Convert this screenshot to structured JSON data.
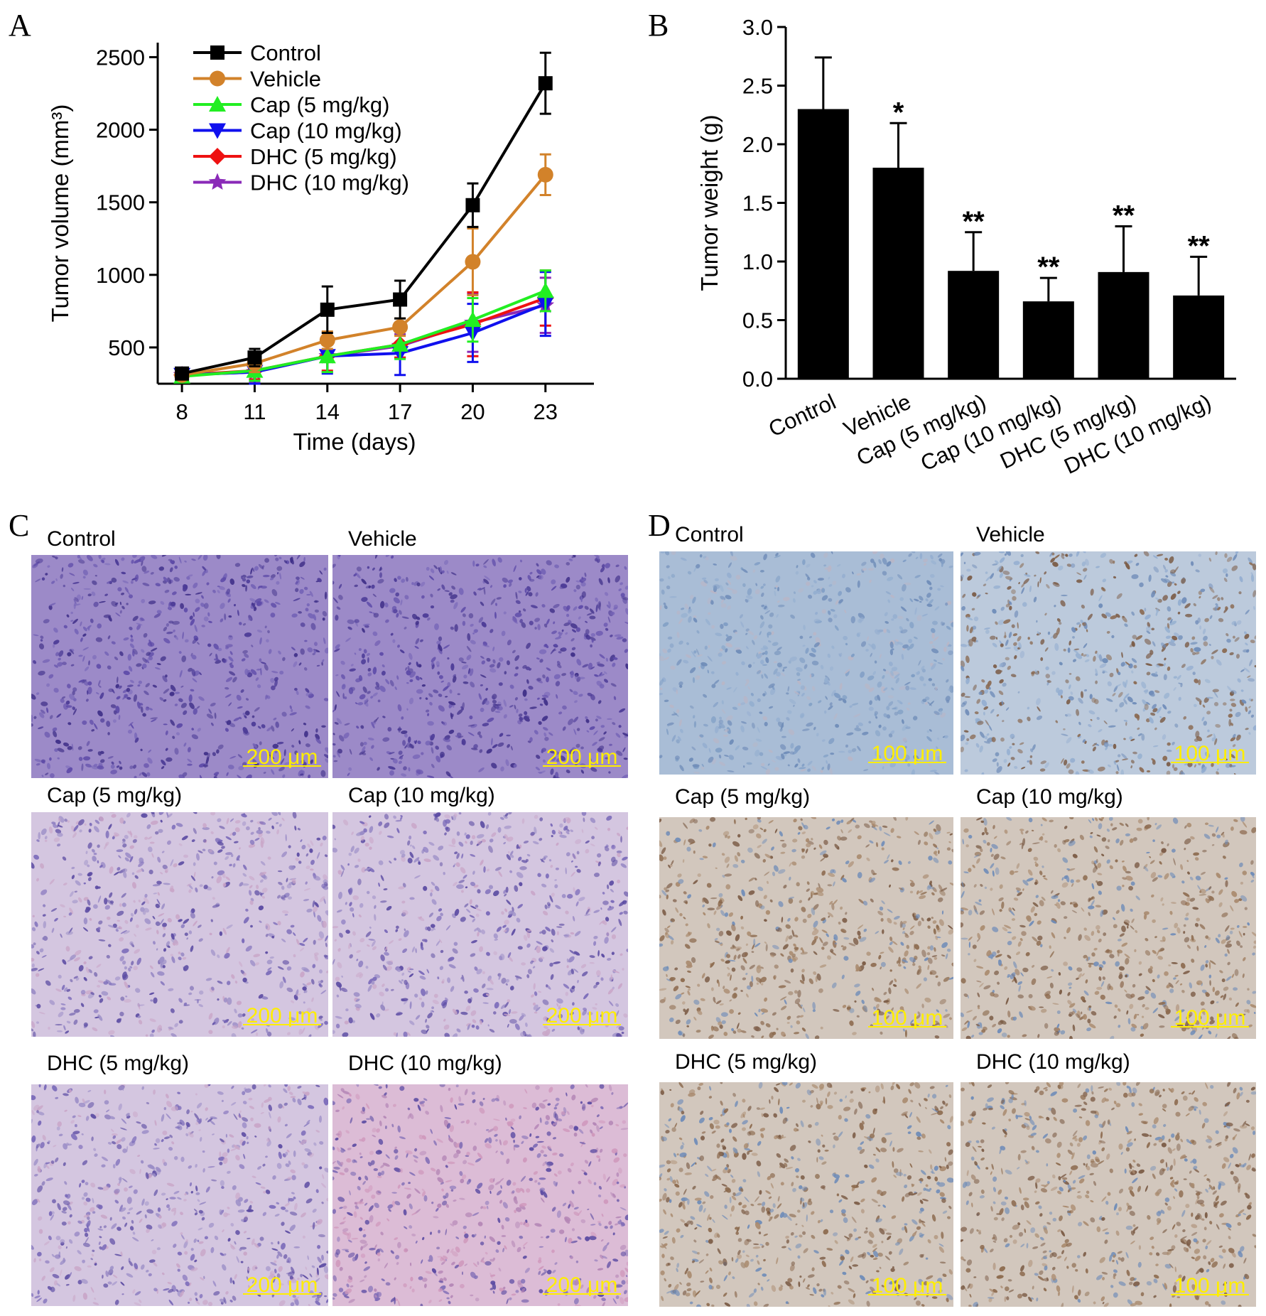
{
  "panels": {
    "a": "A",
    "b": "B",
    "c": "C",
    "d": "D"
  },
  "chart_data": [
    {
      "type": "line",
      "x": [
        8,
        11,
        14,
        17,
        20,
        23
      ],
      "xlabel": "Time (days)",
      "ylabel": "Tumor volume (mm³)",
      "xlim": [
        7,
        25
      ],
      "ylim": [
        250,
        2600
      ],
      "xticks": [
        8,
        11,
        14,
        17,
        20,
        23
      ],
      "yticks": [
        500,
        1000,
        1500,
        2000,
        2500
      ],
      "legend_position": "top-left",
      "series": [
        {
          "name": "Control",
          "color": "#000000",
          "marker": "square",
          "values": [
            320,
            430,
            760,
            830,
            1480,
            2320
          ],
          "errors": [
            30,
            60,
            160,
            130,
            150,
            210
          ]
        },
        {
          "name": "Vehicle",
          "color": "#d2822a",
          "marker": "circle",
          "values": [
            310,
            390,
            550,
            640,
            1090,
            1690
          ],
          "errors": [
            30,
            60,
            60,
            60,
            230,
            140
          ]
        },
        {
          "name": "Cap (5 mg/kg)",
          "color": "#22ee22",
          "marker": "triangle-up",
          "values": [
            300,
            340,
            440,
            520,
            690,
            890
          ],
          "errors": [
            40,
            70,
            110,
            100,
            150,
            140
          ]
        },
        {
          "name": "Cap (10 mg/kg)",
          "color": "#1010ee",
          "marker": "triangle-down",
          "values": [
            310,
            330,
            440,
            460,
            600,
            800
          ],
          "errors": [
            40,
            80,
            120,
            150,
            200,
            220
          ]
        },
        {
          "name": "DHC (5 mg/kg)",
          "color": "#ee1111",
          "marker": "diamond",
          "values": [
            310,
            340,
            440,
            520,
            660,
            840
          ],
          "errors": [
            40,
            60,
            100,
            90,
            220,
            190
          ]
        },
        {
          "name": "DHC (10 mg/kg)",
          "color": "#8a2ab8",
          "marker": "star",
          "values": [
            310,
            330,
            440,
            510,
            670,
            790
          ],
          "errors": [
            40,
            70,
            110,
            80,
            200,
            190
          ]
        }
      ]
    },
    {
      "type": "bar",
      "categories": [
        "Control",
        "Vehicle",
        "Cap (5 mg/kg)",
        "Cap (10 mg/kg)",
        "DHC (5 mg/kg)",
        "DHC (10 mg/kg)"
      ],
      "values": [
        2.3,
        1.8,
        0.92,
        0.66,
        0.91,
        0.71
      ],
      "errors": [
        0.44,
        0.38,
        0.33,
        0.2,
        0.39,
        0.33
      ],
      "annotations": [
        "",
        "*",
        "**",
        "**",
        "**",
        "**"
      ],
      "ylabel": "Tumor weight (g)",
      "ylim": [
        0,
        3.0
      ],
      "yticks": [
        "0.0",
        "0.5",
        "1.0",
        "1.5",
        "2.0",
        "2.5",
        "3.0"
      ],
      "bar_color": "#000000"
    }
  ],
  "he_panels": [
    {
      "label": "Control",
      "scale": "200 μm",
      "stain": "he-dense"
    },
    {
      "label": "Vehicle",
      "scale": "200 μm",
      "stain": "he-dense"
    },
    {
      "label": "Cap (5 mg/kg)",
      "scale": "200 μm",
      "stain": "he-light"
    },
    {
      "label": "Cap (10 mg/kg)",
      "scale": "200 μm",
      "stain": "he-light"
    },
    {
      "label": "DHC (5 mg/kg)",
      "scale": "200 μm",
      "stain": "he-light"
    },
    {
      "label": "DHC (10 mg/kg)",
      "scale": "200 μm",
      "stain": "he-pink"
    }
  ],
  "ihc_panels": [
    {
      "label": "Control",
      "scale": "100 μm",
      "stain": "ihc-blue"
    },
    {
      "label": "Vehicle",
      "scale": "100 μm",
      "stain": "ihc-mixed"
    },
    {
      "label": "Cap (5 mg/kg)",
      "scale": "100 μm",
      "stain": "ihc-brown"
    },
    {
      "label": "Cap (10 mg/kg)",
      "scale": "100 μm",
      "stain": "ihc-brown"
    },
    {
      "label": "DHC (5 mg/kg)",
      "scale": "100 μm",
      "stain": "ihc-brown"
    },
    {
      "label": "DHC (10 mg/kg)",
      "scale": "100 μm",
      "stain": "ihc-brown"
    }
  ],
  "stain_colors": {
    "he-dense": {
      "base": "#9c8ac8",
      "dots": [
        "#4b3a96",
        "#5d4aa8",
        "#7463b6",
        "#3f2f88"
      ]
    },
    "he-light": {
      "base": "#d4c6e0",
      "dots": [
        "#5a4aa2",
        "#7868b8",
        "#9a8cc6",
        "#c9a6c8"
      ]
    },
    "he-pink": {
      "base": "#dcbcd6",
      "dots": [
        "#5a4aa2",
        "#b486b6",
        "#cf98bc",
        "#7e6cb6"
      ]
    },
    "ihc-blue": {
      "base": "#a9bdd6",
      "dots": [
        "#7e9cc4",
        "#94aed0",
        "#6f8cb8",
        "#b9b6c6"
      ]
    },
    "ihc-mixed": {
      "base": "#bccadc",
      "dots": [
        "#6f8cb8",
        "#8a6a52",
        "#94aed0",
        "#7a5a44"
      ]
    },
    "ihc-brown": {
      "base": "#d2c7bd",
      "dots": [
        "#7a5a44",
        "#8c6a4e",
        "#6f8cb8",
        "#a98a6e"
      ]
    }
  }
}
